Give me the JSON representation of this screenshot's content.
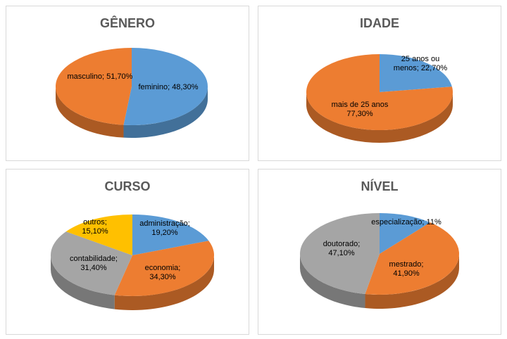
{
  "colors": {
    "blue": "#5b9bd5",
    "orange": "#ed7d31",
    "gray": "#a5a5a5",
    "yellow": "#ffc000",
    "title": "#595959"
  },
  "chart_data": [
    {
      "type": "pie",
      "title": "GÊNERO",
      "slices": [
        {
          "name": "masculino",
          "value": 51.7,
          "label": [
            "masculino; 51,70%"
          ],
          "color": "#5b9bd5"
        },
        {
          "name": "feminino",
          "value": 48.3,
          "label": [
            "feminino; 48,30%"
          ],
          "color": "#ed7d31"
        }
      ]
    },
    {
      "type": "pie",
      "title": "IDADE",
      "slices": [
        {
          "name": "25 anos ou menos",
          "value": 22.7,
          "label": [
            "25 anos ou",
            "menos; 22,70%"
          ],
          "color": "#5b9bd5"
        },
        {
          "name": "mais de 25 anos",
          "value": 77.3,
          "label": [
            "mais de 25 anos",
            "77,30%"
          ],
          "color": "#ed7d31"
        }
      ]
    },
    {
      "type": "pie",
      "title": "CURSO",
      "slices": [
        {
          "name": "administração",
          "value": 19.2,
          "label": [
            "administração;",
            "19,20%"
          ],
          "color": "#5b9bd5"
        },
        {
          "name": "economia",
          "value": 34.3,
          "label": [
            "economia;",
            "34,30%"
          ],
          "color": "#ed7d31"
        },
        {
          "name": "contabilidade",
          "value": 31.4,
          "label": [
            "contabilidade;",
            "31,40%"
          ],
          "color": "#a5a5a5"
        },
        {
          "name": "outros",
          "value": 15.1,
          "label": [
            "outros;",
            "15,10%"
          ],
          "color": "#ffc000"
        }
      ]
    },
    {
      "type": "pie",
      "title": "NÍVEL",
      "slices": [
        {
          "name": "especialização",
          "value": 11,
          "label": [
            "especialização; 11%"
          ],
          "color": "#5b9bd5"
        },
        {
          "name": "mestrado",
          "value": 41.9,
          "label": [
            "mestrado;",
            "41,90%"
          ],
          "color": "#ed7d31"
        },
        {
          "name": "doutorado",
          "value": 47.1,
          "label": [
            "doutorado;",
            "47,10%"
          ],
          "color": "#a5a5a5"
        }
      ]
    }
  ]
}
